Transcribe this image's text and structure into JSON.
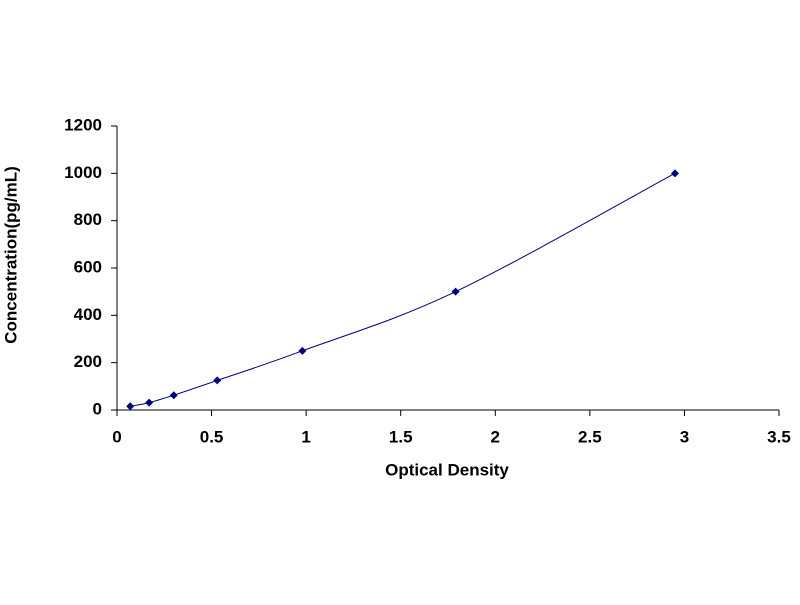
{
  "chart_data": {
    "type": "scatter",
    "x_label": "Optical Density",
    "y_label": "Concentration(pg/mL)",
    "x": [
      0.07,
      0.17,
      0.3,
      0.53,
      0.98,
      1.79,
      2.95
    ],
    "values": [
      15.6,
      31.25,
      62.5,
      125,
      250,
      500,
      1000
    ],
    "color": "#00007f",
    "xlim": [
      0,
      3.5
    ],
    "xticks": [
      0,
      0.5,
      1,
      1.5,
      2,
      2.5,
      3,
      3.5
    ],
    "ylim": [
      0,
      1200
    ],
    "yticks": [
      0,
      200,
      400,
      600,
      800,
      1000,
      1200
    ],
    "grid": false
  }
}
